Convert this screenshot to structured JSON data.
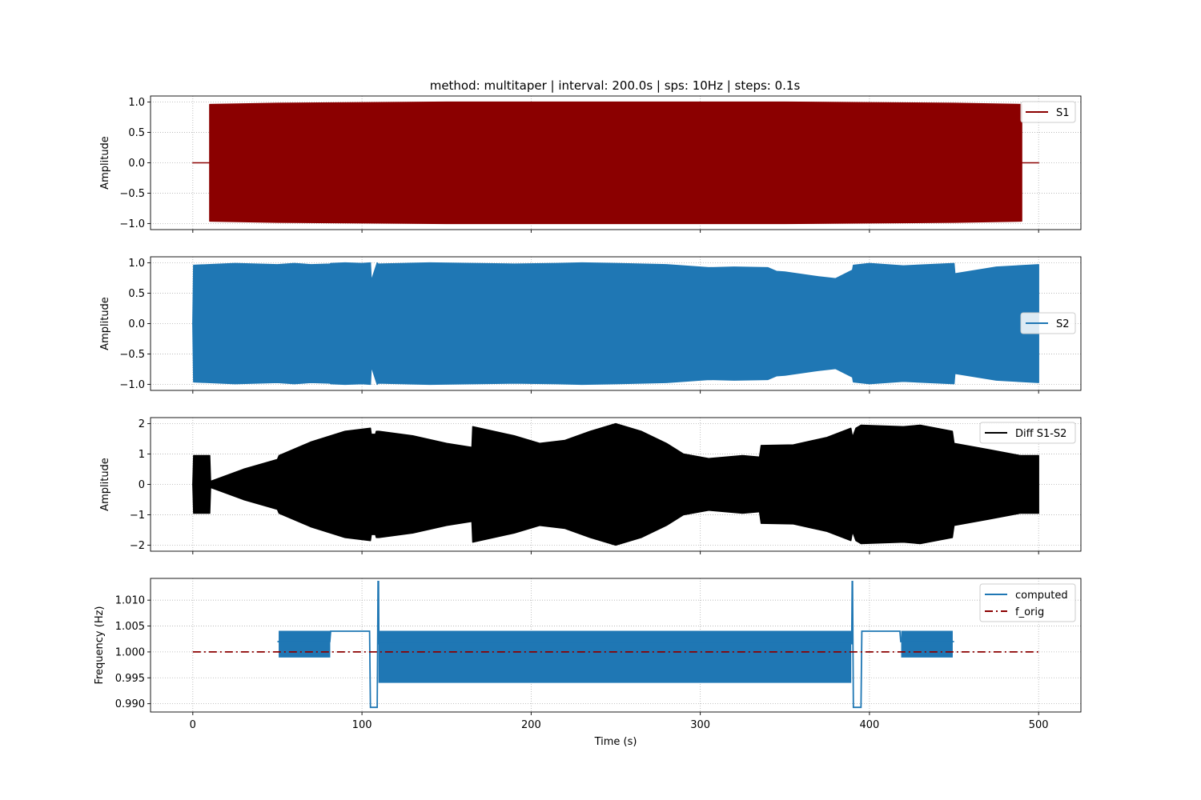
{
  "chart_data": [
    {
      "type": "line",
      "title": "method: multitaper | interval: 200.0s  |  sps: 10Hz  |  steps: 0.1s",
      "xlabel": "",
      "ylabel": "Amplitude",
      "xlim": [
        -25,
        525
      ],
      "ylim": [
        -1.1,
        1.1
      ],
      "x_ticks": [
        0,
        100,
        200,
        300,
        400,
        500
      ],
      "y_ticks": [
        1.0,
        0.5,
        0.0,
        -0.5,
        -1.0
      ],
      "y_tick_labels": [
        "1.0",
        "0.5",
        "0.0",
        "−0.5",
        "−1.0"
      ],
      "grid": true,
      "legend_position": "upper-right",
      "series": [
        {
          "name": "S1",
          "color": "#8b0000",
          "style": "solid",
          "envelope": {
            "x": [
              0,
              10,
              10,
              50,
              100,
              150,
              200,
              250,
              300,
              350,
              400,
              450,
              490,
              490,
              500
            ],
            "upper": [
              0,
              0,
              0.96,
              0.98,
              0.99,
              1.0,
              1.0,
              1.0,
              1.0,
              1.0,
              0.99,
              0.98,
              0.96,
              0,
              0
            ],
            "lower": [
              0,
              0,
              -0.96,
              -0.98,
              -0.99,
              -1.0,
              -1.0,
              -1.0,
              -1.0,
              -1.0,
              -0.99,
              -0.98,
              -0.96,
              0,
              0
            ]
          }
        }
      ]
    },
    {
      "type": "line",
      "title": "",
      "xlabel": "",
      "ylabel": "Amplitude",
      "xlim": [
        -25,
        525
      ],
      "ylim": [
        -1.1,
        1.1
      ],
      "x_ticks": [
        0,
        100,
        200,
        300,
        400,
        500
      ],
      "y_ticks": [
        1.0,
        0.5,
        0.0,
        -0.5,
        -1.0
      ],
      "y_tick_labels": [
        "1.0",
        "0.5",
        "0.0",
        "−0.5",
        "−1.0"
      ],
      "grid": true,
      "legend_position": "center-right",
      "series": [
        {
          "name": "S2",
          "color": "#1f77b4",
          "style": "solid",
          "envelope": {
            "x": [
              0,
              0.5,
              25,
              50,
              60,
              70,
              81,
              81.5,
              90,
              100,
              105,
              105.5,
              109,
              109.5,
              125,
              140,
              165,
              165.5,
              190,
              215,
              230,
              250,
              280,
              300,
              305,
              320,
              340,
              345,
              350,
              370,
              380,
              390,
              390.5,
              400,
              420,
              450,
              450.5,
              475,
              500,
              500
            ],
            "upper": [
              0,
              0.96,
              0.99,
              0.97,
              0.99,
              0.97,
              0.98,
              0.99,
              1.0,
              0.99,
              1.0,
              0.7,
              1.0,
              0.98,
              0.99,
              1.0,
              0.99,
              0.99,
              0.98,
              0.99,
              1.0,
              0.99,
              0.97,
              0.93,
              0.92,
              0.93,
              0.92,
              0.86,
              0.85,
              0.77,
              0.74,
              0.88,
              0.96,
              0.99,
              0.95,
              0.99,
              0.82,
              0.93,
              0.97,
              0
            ],
            "lower": [
              0,
              -0.96,
              -0.99,
              -0.97,
              -0.99,
              -0.97,
              -0.98,
              -0.99,
              -1.0,
              -0.99,
              -1.0,
              -0.7,
              -1.0,
              -0.98,
              -0.99,
              -1.0,
              -0.99,
              -0.99,
              -0.98,
              -0.99,
              -1.0,
              -0.99,
              -0.97,
              -0.93,
              -0.92,
              -0.93,
              -0.92,
              -0.86,
              -0.85,
              -0.77,
              -0.74,
              -0.88,
              -0.96,
              -0.99,
              -0.95,
              -0.99,
              -0.82,
              -0.93,
              -0.97,
              0
            ]
          }
        }
      ]
    },
    {
      "type": "line",
      "title": "",
      "xlabel": "",
      "ylabel": "Amplitude",
      "xlim": [
        -25,
        525
      ],
      "ylim": [
        -2.2,
        2.2
      ],
      "x_ticks": [
        0,
        100,
        200,
        300,
        400,
        500
      ],
      "y_ticks": [
        2,
        1,
        0,
        -1,
        -2
      ],
      "y_tick_labels": [
        "2",
        "1",
        "0",
        "−1",
        "−2"
      ],
      "grid": true,
      "legend_position": "upper-right",
      "series": [
        {
          "name": "Diff S1-S2",
          "color": "#000000",
          "style": "solid",
          "envelope": {
            "x": [
              0,
              0.5,
              10,
              10.5,
              30,
              50,
              51,
              70,
              90,
              105,
              105.5,
              108,
              108.5,
              110,
              130,
              150,
              165,
              165.5,
              190,
              205,
              220,
              235,
              250,
              265,
              280,
              290,
              305,
              325,
              335,
              336,
              355,
              375,
              389,
              390,
              392,
              395,
              420,
              430,
              449,
              450,
              470,
              489,
              490,
              500,
              500
            ],
            "upper": [
              0,
              0.95,
              0.95,
              0.1,
              0.5,
              0.82,
              0.95,
              1.4,
              1.75,
              1.85,
              1.65,
              1.65,
              1.75,
              1.75,
              1.6,
              1.35,
              1.22,
              1.9,
              1.6,
              1.35,
              1.45,
              1.75,
              2.0,
              1.75,
              1.35,
              1.0,
              0.85,
              0.95,
              0.9,
              1.28,
              1.3,
              1.55,
              1.85,
              1.55,
              1.85,
              1.95,
              1.9,
              1.95,
              1.75,
              1.35,
              1.15,
              0.95,
              0.95,
              0.95,
              0
            ],
            "lower": [
              0,
              -0.95,
              -0.95,
              -0.1,
              -0.5,
              -0.82,
              -0.95,
              -1.4,
              -1.75,
              -1.85,
              -1.65,
              -1.65,
              -1.75,
              -1.75,
              -1.6,
              -1.35,
              -1.22,
              -1.9,
              -1.6,
              -1.35,
              -1.45,
              -1.75,
              -2.0,
              -1.75,
              -1.35,
              -1.0,
              -0.85,
              -0.95,
              -0.9,
              -1.28,
              -1.3,
              -1.55,
              -1.85,
              -1.55,
              -1.85,
              -1.95,
              -1.9,
              -1.95,
              -1.75,
              -1.35,
              -1.15,
              -0.95,
              -0.95,
              -0.95,
              0
            ]
          }
        }
      ]
    },
    {
      "type": "line",
      "title": "",
      "xlabel": "Time (s)",
      "ylabel": "Frequency (Hz)",
      "xlim": [
        -25,
        525
      ],
      "ylim": [
        0.9884,
        1.0142
      ],
      "x_ticks": [
        0,
        100,
        200,
        300,
        400,
        500
      ],
      "y_ticks": [
        1.01,
        1.005,
        1.0,
        0.995,
        0.99
      ],
      "y_tick_labels": [
        "1.010",
        "1.005",
        "1.000",
        "0.995",
        "0.990"
      ],
      "grid": true,
      "legend_position": "upper-right",
      "series": [
        {
          "name": "computed",
          "color": "#1f77b4",
          "style": "solid",
          "x": [
            50,
            52,
            81,
            81.5,
            104,
            104.5,
            105,
            105.5,
            109,
            109.5,
            109.8,
            110,
            389.5,
            389.8,
            390,
            390.5,
            391,
            391.5,
            395,
            395.5,
            418,
            418.5,
            449,
            449.5,
            450
          ],
          "y": [
            1.002,
            1.002,
            1.002,
            1.004,
            1.004,
            1.004,
            0.9893,
            0.9893,
            0.9893,
            1.0136,
            1.0136,
            1.0016,
            1.0016,
            1.0136,
            1.0136,
            0.9893,
            0.9893,
            0.9893,
            0.9893,
            1.004,
            1.004,
            1.002,
            1.002,
            1.002,
            1.002
          ],
          "bands": [
            {
              "x_start": 51,
              "x_end": 81,
              "upper": 1.004,
              "lower": 0.999
            },
            {
              "x_start": 110,
              "x_end": 389,
              "upper": 1.004,
              "lower": 0.9941
            },
            {
              "x_start": 419,
              "x_end": 449,
              "upper": 1.004,
              "lower": 0.999
            }
          ]
        },
        {
          "name": "f_orig",
          "color": "#8b0000",
          "style": "dashdot",
          "x": [
            0,
            500
          ],
          "y": [
            1.0,
            1.0
          ]
        }
      ]
    }
  ]
}
